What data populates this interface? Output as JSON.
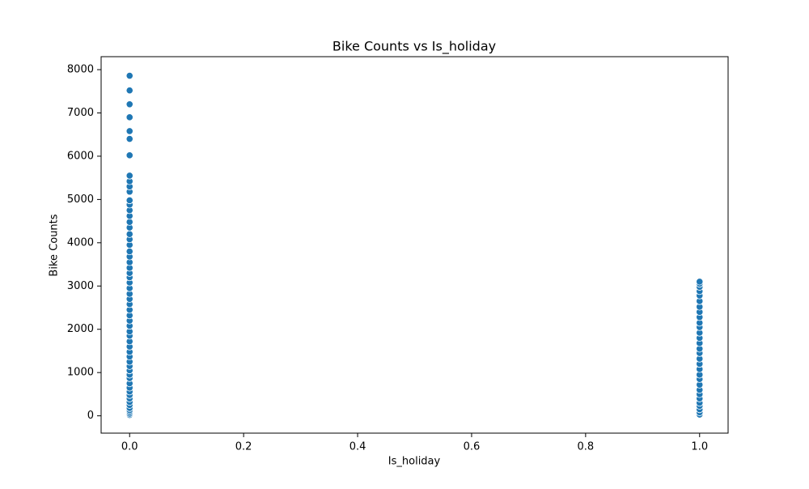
{
  "chart_data": {
    "type": "scatter",
    "title": "Bike Counts vs Is_holiday",
    "xlabel": "Is_holiday",
    "ylabel": "Bike Counts",
    "color": "#1f77b4",
    "x": [
      0,
      0,
      0,
      0,
      0,
      0,
      0,
      0,
      0,
      0,
      0,
      0,
      0,
      0,
      0,
      0,
      0,
      0,
      0,
      0,
      0,
      0,
      0,
      0,
      0,
      0,
      0,
      0,
      0,
      0,
      0,
      0,
      0,
      0,
      0,
      0,
      0,
      0,
      0,
      0,
      0,
      0,
      0,
      0,
      0,
      0,
      0,
      0,
      0,
      0,
      0,
      0,
      0,
      0,
      0,
      0,
      0,
      0,
      1,
      1,
      1,
      1,
      1,
      1,
      1,
      1,
      1,
      1,
      1,
      1,
      1,
      1,
      1,
      1,
      1,
      1,
      1,
      1,
      1,
      1,
      1,
      1,
      1,
      1,
      1,
      1,
      1,
      1
    ],
    "y": [
      20,
      50,
      90,
      130,
      180,
      250,
      320,
      400,
      480,
      560,
      650,
      750,
      870,
      950,
      1050,
      1150,
      1250,
      1370,
      1480,
      1600,
      1720,
      1850,
      1950,
      2080,
      2200,
      2320,
      2450,
      2580,
      2700,
      2820,
      2950,
      3080,
      3200,
      3300,
      3420,
      3550,
      3680,
      3800,
      3950,
      4080,
      4200,
      4350,
      4480,
      4620,
      4750,
      4880,
      4980,
      5180,
      5300,
      5420,
      5550,
      6020,
      6400,
      6580,
      6900,
      7200,
      7520,
      7860,
      30,
      80,
      150,
      230,
      300,
      400,
      500,
      600,
      720,
      850,
      950,
      1080,
      1200,
      1320,
      1450,
      1550,
      1680,
      1800,
      1920,
      2050,
      2150,
      2280,
      2400,
      2520,
      2650,
      2780,
      2880,
      2980,
      3050,
      3100
    ],
    "xlim": [
      -0.05,
      1.05
    ],
    "xticks": [
      {
        "value": 0,
        "label": "0.0"
      },
      {
        "value": 0.2,
        "label": "0.2"
      },
      {
        "value": 0.4,
        "label": "0.4"
      },
      {
        "value": 0.6,
        "label": "0.6"
      },
      {
        "value": 0.8,
        "label": "0.8"
      },
      {
        "value": 1,
        "label": "1.0"
      }
    ],
    "ylim": [
      -400,
      8300
    ],
    "yticks": [
      0,
      1000,
      2000,
      3000,
      4000,
      5000,
      6000,
      7000,
      8000
    ]
  }
}
